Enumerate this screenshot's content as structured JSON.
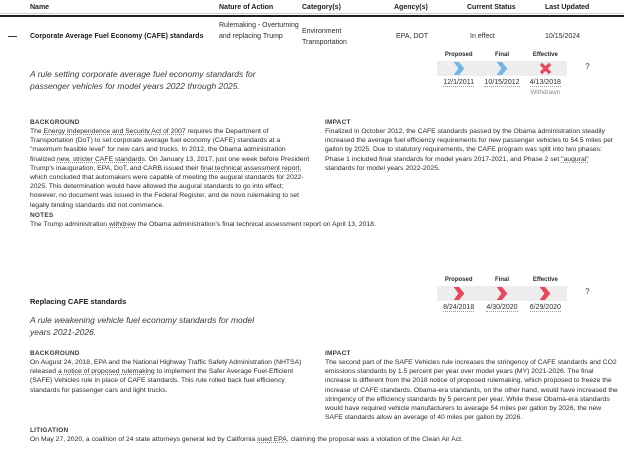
{
  "colors": {
    "blue": "#70b5e3",
    "red": "#e8475a",
    "band": "#ededed",
    "muted": "#8a8a8a"
  },
  "table": {
    "headers": [
      "Name",
      "Nature of Action",
      "Category(s)",
      "Agency(s)",
      "Current Status",
      "Last Updated"
    ]
  },
  "entry1": {
    "collapse_icon": "—",
    "name": "Corporate Average Fuel Economy (CAFE) standards",
    "nature_of_action": "Rulemaking - Overturning and replacing Trump",
    "categories": [
      "Environment",
      "Transportation"
    ],
    "agencies": "EPA, DOT",
    "current_status": "In effect",
    "last_updated": "10/15/2024",
    "timeline": {
      "help_icon": "?",
      "steps": [
        {
          "label": "Proposed",
          "date": "12/1/2011",
          "marker": "completed-blue-chevron"
        },
        {
          "label": "Final",
          "date": "10/15/2012",
          "marker": "completed-blue-chevron"
        },
        {
          "label": "Effective",
          "date": "4/13/2018",
          "marker": "withdrawn-red-x",
          "note": "Withdrawn"
        }
      ]
    },
    "description": "A rule setting corporate average fuel economy standards for passenger vehicles for model years 2022 through 2025.",
    "background": {
      "label": "BACKGROUND",
      "segments": [
        {
          "text": "The "
        },
        {
          "text": "Energy Independence and Security Act of 2007",
          "link": true
        },
        {
          "text": " requires the Department of Transportation (DoT) to set corporate average fuel economy (CAFE) standards at a \"maximum feasible level\" for new cars and trucks. In 2012, the Obama administration finalized "
        },
        {
          "text": "new, stricter CAFE standards",
          "link": true
        },
        {
          "text": ". On January 13, 2017, just one week before President Trump's inauguration, EPA, DoT, and CARB issued their "
        },
        {
          "text": "final technical assessment report",
          "link": true
        },
        {
          "text": ", which concluded that automakers were capable of meeting the augural standards for 2022-2025. This determination would have allowed the augural standards to go into effect; however, no document was issued in the Federal Register, and de novo rulemaking to set legally binding standards did not commence."
        }
      ]
    },
    "impact": {
      "label": "IMPACT",
      "segments": [
        {
          "text": "Finalized in October 2012, the CAFE standards passed by the Obama administration steadily increased the average fuel efficiency requirements for new passenger vehicles to 54.5 miles per gallon by 2025. Due to statutory requirements, the CAFE program was split into two phases: Phase 1 included final standards for model years 2017-2021, and Phase 2 set "
        },
        {
          "text": "\"augural\"",
          "link": true
        },
        {
          "text": " standards for model years 2022-2025."
        }
      ]
    },
    "notes": {
      "label": "NOTES",
      "segments": [
        {
          "text": "The Trump administration "
        },
        {
          "text": "withdrew",
          "link": true
        },
        {
          "text": " the Obama administration's final technical assessment report on April 13, 2018."
        }
      ]
    }
  },
  "entry2": {
    "name": "Replacing CAFE standards",
    "timeline": {
      "help_icon": "?",
      "steps": [
        {
          "label": "Proposed",
          "date": "8/24/2018",
          "marker": "deregulatory-red-chevron"
        },
        {
          "label": "Final",
          "date": "4/30/2020",
          "marker": "deregulatory-red-chevron"
        },
        {
          "label": "Effective",
          "date": "6/29/2020",
          "marker": "deregulatory-red-chevron"
        }
      ]
    },
    "description": "A rule weakening vehicle fuel economy standards for model years 2021-2026.",
    "background": {
      "label": "BACKGROUND",
      "segments": [
        {
          "text": "On August 24, 2018, EPA and the National Highway Traffic Safety Administration (NHTSA) released "
        },
        {
          "text": "a notice of proposed rulemaking",
          "link": true
        },
        {
          "text": " to implement the Safer Average Fuel-Efficient (SAFE) Vehicles rule in place of CAFE standards. This rule rolled back fuel efficiency standards for passenger cars and light trucks."
        }
      ]
    },
    "impact": {
      "label": "IMPACT",
      "segments": [
        {
          "text": "The second part of the SAFE Vehicles rule increases the stringency of CAFE standards and CO2 emissions standards by 1.5 percent per year over model years (MY) 2021-2026. The final increase is different from the 2018 notice of proposed rulemaking, which proposed to freeze the increase of CAFE standards. Obama-era standards, on the other hand, would have increased the stringency of the efficiency standards by 5 percent per year. While these Obama-era standards would have required vehicle manufacturers to average 54 miles per gallon by 2026, the new SAFE standards allow an average of 40 miles per gallon by 2026."
        }
      ]
    },
    "litigation": {
      "label": "LITIGATION",
      "segments": [
        {
          "text": "On May 27, 2020, a coalition of 24 state attorneys general led by California "
        },
        {
          "text": "sued EPA",
          "link": true
        },
        {
          "text": ", claiming the proposal was a violation of the Clean Air Act."
        }
      ]
    }
  }
}
